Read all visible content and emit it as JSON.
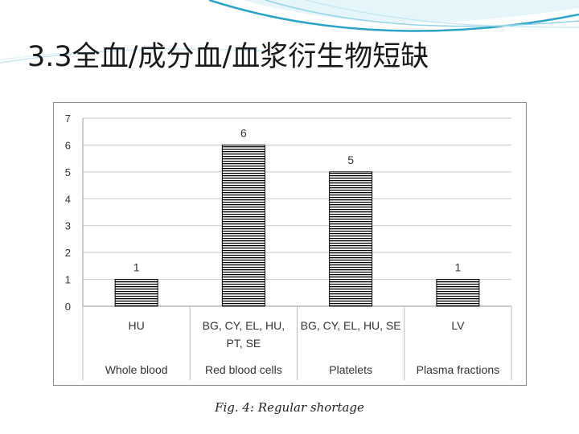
{
  "slide": {
    "title": "3.3全血/成分血/血浆衍生物短缺",
    "caption": "Fig. 4: Regular shortage"
  },
  "colors": {
    "swoosh_dark": "#2aa3c9",
    "swoosh_light": "#bfe6f2",
    "bar_stripe": "#000000",
    "grid": "#c8c8c8"
  },
  "chart_data": {
    "type": "bar",
    "categories": [
      [
        "HU"
      ],
      [
        "BG, CY, EL, HU,",
        "PT, SE"
      ],
      [
        "BG, CY, EL, HU, SE"
      ],
      [
        "LV"
      ]
    ],
    "groups": [
      "Whole blood",
      "Red blood cells",
      "Platelets",
      "Plasma fractions"
    ],
    "values": [
      1,
      6,
      5,
      1
    ],
    "data_labels": [
      "1",
      "6",
      "5",
      "1"
    ],
    "ylim": [
      0,
      7
    ],
    "yticks": [
      0,
      1,
      2,
      3,
      4,
      5,
      6,
      7
    ],
    "grid": true,
    "bar_fill": "horizontal-stripes"
  }
}
